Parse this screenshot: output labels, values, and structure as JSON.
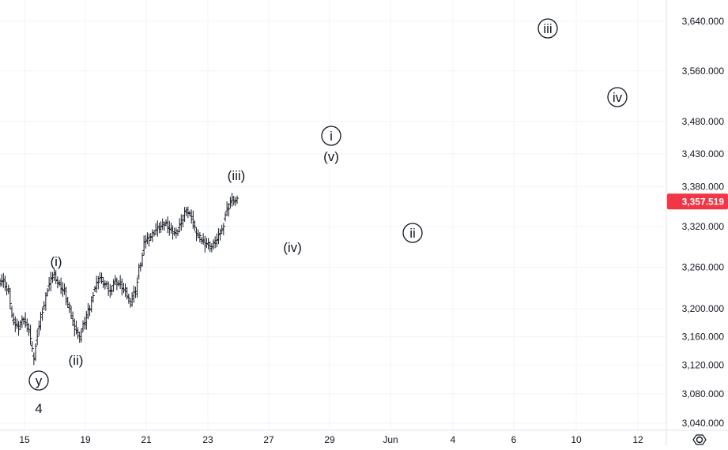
{
  "chart_data": {
    "type": "candlestick",
    "y_axis": {
      "position": "right",
      "ticks": [
        "3,640.000",
        "3,560.000",
        "3,480.000",
        "3,430.000",
        "3,380.000",
        "3,320.000",
        "3,260.000",
        "3,200.000",
        "3,160.000",
        "3,120.000",
        "3,080.000",
        "3,040.000"
      ],
      "scale": "log",
      "range": [
        3035,
        3680
      ]
    },
    "x_axis": {
      "ticks": [
        "15",
        "19",
        "21",
        "23",
        "27",
        "29",
        "Jun",
        "4",
        "6",
        "10",
        "12"
      ]
    },
    "last_price": {
      "label": "3,357.519",
      "value": 3357.519,
      "color": "#f23645"
    },
    "settings_icon": "gear-icon",
    "colors": {
      "up": "#089981",
      "down": "#f23645",
      "grid": "#f0f3fa",
      "text": "#131722"
    },
    "wave_labels": [
      {
        "text": "(i)",
        "price": 3256,
        "date": "May 16",
        "circled": false,
        "size": "normal"
      },
      {
        "text": "(ii)",
        "price": 3146,
        "date": "May 18",
        "circled": false,
        "size": "normal"
      },
      {
        "text": "y",
        "price": 3105,
        "date": "May 15",
        "circled": true,
        "size": "normal"
      },
      {
        "text": "4",
        "price": 3059,
        "date": "May 15",
        "circled": false,
        "size": "large"
      },
      {
        "text": "(iii)",
        "price": 3385,
        "date": "May 24",
        "circled": false,
        "size": "normal"
      },
      {
        "text": "(iv)",
        "price": 3290,
        "date": "May 27",
        "circled": false,
        "size": "normal"
      },
      {
        "text": "i",
        "price": 3460,
        "date": "May 29",
        "circled": true,
        "size": "normal"
      },
      {
        "text": "(v)",
        "price": 3430,
        "date": "May 29",
        "circled": false,
        "size": "normal"
      },
      {
        "text": "ii",
        "price": 3280,
        "date": "Jun 1",
        "circled": true,
        "size": "normal"
      },
      {
        "text": "iii",
        "price": 3635,
        "date": "Jun 8",
        "circled": true,
        "size": "normal"
      },
      {
        "text": "iv",
        "price": 3522,
        "date": "Jun 11",
        "circled": true,
        "size": "normal"
      }
    ],
    "series": [
      {
        "kind": "ohlc",
        "start": "May 14",
        "end": "May 24",
        "approx_values": [
          3240,
          3225,
          3180,
          3175,
          3185,
          3170,
          3130,
          3175,
          3205,
          3235,
          3250,
          3235,
          3225,
          3200,
          3175,
          3160,
          3180,
          3200,
          3230,
          3245,
          3235,
          3225,
          3240,
          3235,
          3225,
          3210,
          3225,
          3265,
          3300,
          3305,
          3315,
          3320,
          3325,
          3315,
          3310,
          3325,
          3345,
          3335,
          3310,
          3300,
          3295,
          3290,
          3300,
          3315,
          3345,
          3360,
          3358
        ]
      }
    ]
  }
}
